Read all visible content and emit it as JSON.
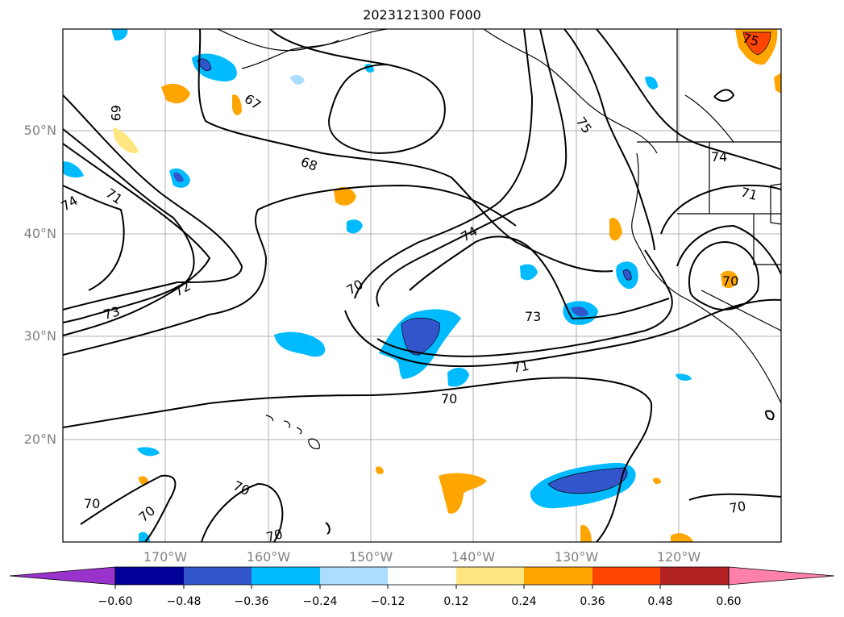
{
  "title": "2023121300 F000",
  "latitude_labels": [
    "50°N",
    "40°N",
    "30°N",
    "20°N"
  ],
  "longitude_labels": [
    "170°W",
    "160°W",
    "150°W",
    "140°W",
    "130°W",
    "120°W"
  ],
  "contour_labels": [
    "69",
    "67",
    "68",
    "71",
    "74",
    "72",
    "73",
    "70",
    "73",
    "71",
    "70",
    "75",
    "74",
    "71",
    "70",
    "70",
    "70",
    "70",
    "70",
    "70",
    "75"
  ],
  "colorbar": {
    "ticks": [
      "−0.60",
      "−0.48",
      "−0.36",
      "−0.24",
      "−0.12",
      "0.12",
      "0.24",
      "0.36",
      "0.48",
      "0.60"
    ],
    "colors": [
      "#9933cc",
      "#000099",
      "#3355cc",
      "#00bbff",
      "#aaddff",
      "#ffffff",
      "#ffe680",
      "#ffa500",
      "#ff4500",
      "#b22222",
      "#ff80aa"
    ]
  }
}
